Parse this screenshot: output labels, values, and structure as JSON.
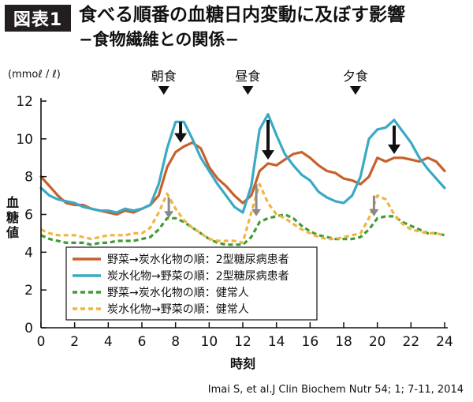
{
  "header": {
    "badge": "図表1",
    "title": "食べる順番の血糖日内変動に及ぼす影響",
    "subtitle": "−食物繊維との関係−"
  },
  "citation": "Imai S, et al.J Clin Biochem Nutr 54; 1; 7-11, 2014",
  "colors": {
    "orange": "#c8602c",
    "blue": "#3aa9c4",
    "green": "#3f9c35",
    "yellow": "#f0b540",
    "grayArrow": "#8a8a8a",
    "blackArrow": "#111111"
  },
  "chart_data": {
    "type": "line",
    "ylabel": "血糖値",
    "xlabel": "時刻",
    "unit": "(mmoℓ / ℓ)",
    "xlim": [
      0,
      24
    ],
    "ylim": [
      0,
      12
    ],
    "xticks": [
      "0",
      "2",
      "4",
      "6",
      "8",
      "10",
      "12",
      "14",
      "16",
      "18",
      "20",
      "22",
      "24"
    ],
    "yticks": [
      "0",
      "2",
      "4",
      "6",
      "8",
      "10",
      "12"
    ],
    "meals": [
      {
        "label": "朝食",
        "x": 7.3
      },
      {
        "label": "昼食",
        "x": 12.3
      },
      {
        "label": "夕食",
        "x": 18.7
      }
    ],
    "arrows": [
      {
        "x": 8.3,
        "from": 10.9,
        "to": 9.8,
        "color": "black"
      },
      {
        "x": 13.5,
        "from": 11.0,
        "to": 8.9,
        "color": "black"
      },
      {
        "x": 21.0,
        "from": 10.7,
        "to": 9.2,
        "color": "black"
      },
      {
        "x": 7.6,
        "from": 6.9,
        "to": 5.8,
        "color": "gray"
      },
      {
        "x": 12.8,
        "from": 7.6,
        "to": 5.9,
        "color": "gray"
      },
      {
        "x": 19.8,
        "from": 7.0,
        "to": 5.9,
        "color": "gray"
      }
    ],
    "series": [
      {
        "name": "野菜→炭水化物の順：2型糖尿病患者",
        "color": "orange",
        "dashed": false,
        "x": [
          0,
          0.5,
          1,
          1.5,
          2,
          2.5,
          3,
          3.5,
          4,
          4.5,
          5,
          5.5,
          6,
          6.5,
          7,
          7.5,
          8,
          8.5,
          9,
          9.5,
          10,
          10.5,
          11,
          11.5,
          12,
          12.5,
          13,
          13.5,
          14,
          14.5,
          15,
          15.5,
          16,
          16.5,
          17,
          17.5,
          18,
          18.5,
          19,
          19.5,
          20,
          20.5,
          21,
          21.5,
          22,
          22.5,
          23,
          23.5,
          24
        ],
        "y": [
          8.0,
          7.5,
          7.0,
          6.6,
          6.5,
          6.5,
          6.3,
          6.2,
          6.1,
          6.0,
          6.2,
          6.1,
          6.3,
          6.5,
          7.0,
          8.5,
          9.3,
          9.6,
          9.8,
          9.5,
          8.5,
          7.9,
          7.5,
          7.0,
          6.6,
          7.0,
          8.3,
          8.7,
          8.6,
          8.9,
          9.2,
          9.3,
          9.0,
          8.6,
          8.3,
          8.2,
          7.9,
          7.8,
          7.6,
          8.0,
          9.0,
          8.8,
          9.0,
          9.0,
          8.9,
          8.8,
          9.0,
          8.8,
          8.3
        ]
      },
      {
        "name": "炭水化物→野菜の順：2型糖尿病患者",
        "color": "blue",
        "dashed": false,
        "x": [
          0,
          0.5,
          1,
          1.5,
          2,
          2.5,
          3,
          3.5,
          4,
          4.5,
          5,
          5.5,
          6,
          6.5,
          7,
          7.5,
          8,
          8.5,
          9,
          9.5,
          10,
          10.5,
          11,
          11.5,
          12,
          12.5,
          13,
          13.5,
          14,
          14.5,
          15,
          15.5,
          16,
          16.5,
          17,
          17.5,
          18,
          18.5,
          19,
          19.5,
          20,
          20.5,
          21,
          21.5,
          22,
          22.5,
          23,
          23.5,
          24
        ],
        "y": [
          7.4,
          7.0,
          6.8,
          6.7,
          6.6,
          6.4,
          6.3,
          6.2,
          6.2,
          6.1,
          6.3,
          6.2,
          6.3,
          6.5,
          7.6,
          9.5,
          10.9,
          10.9,
          10.0,
          9.0,
          8.3,
          7.6,
          7.0,
          6.4,
          6.1,
          7.5,
          10.5,
          11.3,
          10.2,
          9.2,
          8.6,
          8.1,
          7.8,
          7.2,
          6.9,
          6.7,
          6.6,
          7.0,
          8.0,
          10.0,
          10.5,
          10.6,
          11.0,
          10.4,
          9.8,
          9.0,
          8.4,
          7.9,
          7.4
        ]
      },
      {
        "name": "野菜→炭水化物の順：健常人",
        "color": "green",
        "dashed": true,
        "x": [
          0,
          0.5,
          1,
          1.5,
          2,
          2.5,
          3,
          3.5,
          4,
          4.5,
          5,
          5.5,
          6,
          6.5,
          7,
          7.5,
          8,
          8.5,
          9,
          9.5,
          10,
          10.5,
          11,
          11.5,
          12,
          12.5,
          13,
          13.5,
          14,
          14.5,
          15,
          15.5,
          16,
          16.5,
          17,
          17.5,
          18,
          18.5,
          19,
          19.5,
          20,
          20.5,
          21,
          21.5,
          22,
          22.5,
          23,
          23.5,
          24
        ],
        "y": [
          4.9,
          4.7,
          4.6,
          4.5,
          4.5,
          4.5,
          4.4,
          4.5,
          4.5,
          4.6,
          4.6,
          4.6,
          4.7,
          4.8,
          5.2,
          5.8,
          5.8,
          5.6,
          5.3,
          5.0,
          4.7,
          4.5,
          4.4,
          4.4,
          4.4,
          4.8,
          5.6,
          5.8,
          5.9,
          6.0,
          5.8,
          5.4,
          5.1,
          4.9,
          4.8,
          4.7,
          4.7,
          4.7,
          4.8,
          5.2,
          5.8,
          5.9,
          5.9,
          5.6,
          5.4,
          5.2,
          5.0,
          5.0,
          4.9
        ]
      },
      {
        "name": "炭水化物→野菜の順：健常人",
        "color": "yellow",
        "dashed": true,
        "x": [
          0,
          0.5,
          1,
          1.5,
          2,
          2.5,
          3,
          3.5,
          4,
          4.5,
          5,
          5.5,
          6,
          6.5,
          7,
          7.5,
          8,
          8.5,
          9,
          9.5,
          10,
          10.5,
          11,
          11.5,
          12,
          12.5,
          13,
          13.5,
          14,
          14.5,
          15,
          15.5,
          16,
          16.5,
          17,
          17.5,
          18,
          18.5,
          19,
          19.5,
          20,
          20.5,
          21,
          21.5,
          22,
          22.5,
          23,
          23.5,
          24
        ],
        "y": [
          5.2,
          5.0,
          4.9,
          4.9,
          4.9,
          4.8,
          4.7,
          4.8,
          4.9,
          4.9,
          4.9,
          5.0,
          5.0,
          5.3,
          6.1,
          7.1,
          6.3,
          5.7,
          5.3,
          5.0,
          4.7,
          4.6,
          4.6,
          4.6,
          4.5,
          6.1,
          7.6,
          6.6,
          6.0,
          5.8,
          5.5,
          5.2,
          5.0,
          4.8,
          4.7,
          4.7,
          4.8,
          4.9,
          5.0,
          5.8,
          7.0,
          6.8,
          6.0,
          5.5,
          5.2,
          5.1,
          5.0,
          5.0,
          4.9
        ]
      }
    ]
  }
}
